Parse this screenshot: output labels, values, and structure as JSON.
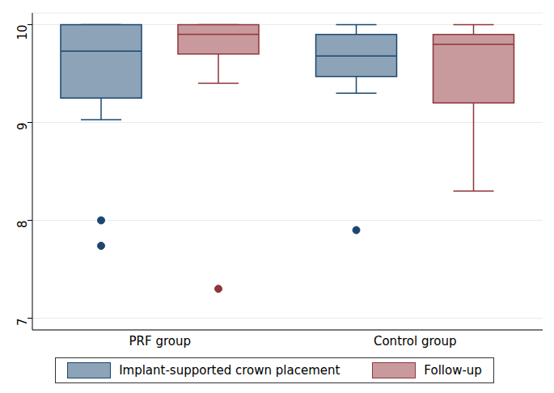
{
  "chart_data": {
    "type": "box",
    "categories": [
      "PRF group",
      "Control group"
    ],
    "series": [
      {
        "name": "Implant-supported crown placement",
        "color": "#1a476f",
        "min": [
          9.03,
          9.3
        ],
        "q1": [
          9.25,
          9.47
        ],
        "median": [
          9.73,
          9.68
        ],
        "q3": [
          10,
          9.9
        ],
        "max": [
          10,
          10
        ],
        "outliers": [
          [
            8.0,
            7.74
          ],
          [
            7.9
          ]
        ]
      },
      {
        "name": "Follow-up",
        "color": "#90353b",
        "min": [
          9.4,
          8.3
        ],
        "q1": [
          9.7,
          9.2
        ],
        "median": [
          9.9,
          9.8
        ],
        "q3": [
          10,
          9.9
        ],
        "max": [
          10,
          10
        ],
        "outliers": [
          [
            7.3
          ],
          []
        ]
      }
    ],
    "ylim": [
      6.88,
      10.12
    ],
    "yticks": [
      7,
      8,
      9,
      10
    ],
    "grid": true,
    "legend": "bottom"
  }
}
